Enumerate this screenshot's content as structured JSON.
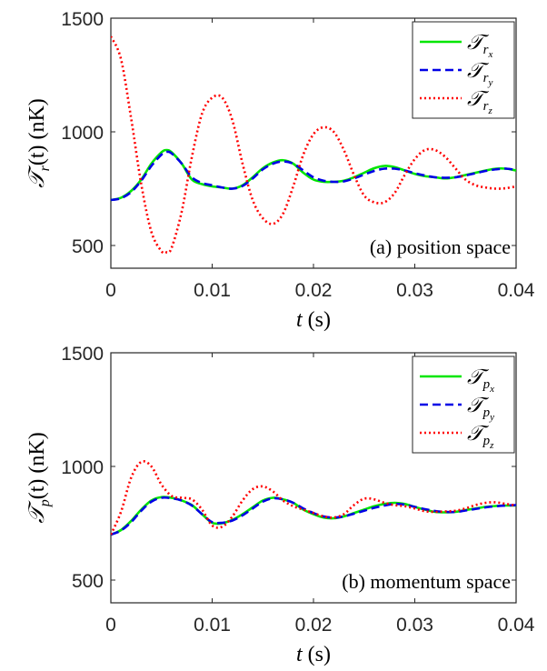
{
  "chart_data": [
    {
      "type": "line",
      "panel_label": "(a) position space",
      "xlabel": "t (s)",
      "ylabel": "𝒯r(t) (nK)",
      "ylabel_parts": {
        "symbol": "𝒯",
        "sub": "r",
        "rest": "(t) (nK)"
      },
      "xlim": [
        0,
        0.04
      ],
      "ylim": [
        400,
        1500
      ],
      "xticks": [
        "0",
        "0.01",
        "0.02",
        "0.03",
        "0.04"
      ],
      "yticks": [
        "500",
        "1000",
        "1500"
      ],
      "legend_position": "top-right",
      "grid": false,
      "series": [
        {
          "name": "𝒯r_x",
          "symbol": "𝒯",
          "sub": "r",
          "subsub": "x",
          "color": "#00e600",
          "dash": "solid",
          "x": [
            0,
            0.001,
            0.002,
            0.003,
            0.004,
            0.005,
            0.0055,
            0.006,
            0.007,
            0.008,
            0.009,
            0.01,
            0.011,
            0.012,
            0.013,
            0.014,
            0.015,
            0.016,
            0.017,
            0.018,
            0.019,
            0.02,
            0.021,
            0.022,
            0.023,
            0.024,
            0.025,
            0.026,
            0.027,
            0.028,
            0.029,
            0.03,
            0.031,
            0.032,
            0.033,
            0.034,
            0.035,
            0.036,
            0.037,
            0.038,
            0.039,
            0.04
          ],
          "y": [
            700,
            710,
            740,
            790,
            860,
            910,
            920,
            910,
            860,
            790,
            770,
            760,
            755,
            750,
            765,
            800,
            840,
            865,
            875,
            860,
            820,
            790,
            780,
            780,
            785,
            800,
            820,
            840,
            850,
            845,
            830,
            815,
            805,
            800,
            795,
            800,
            810,
            820,
            830,
            838,
            838,
            830
          ]
        },
        {
          "name": "𝒯r_y",
          "symbol": "𝒯",
          "sub": "r",
          "subsub": "y",
          "color": "#0000e6",
          "dash": "dashed",
          "x": [
            0,
            0.001,
            0.002,
            0.003,
            0.004,
            0.005,
            0.0055,
            0.006,
            0.007,
            0.008,
            0.009,
            0.01,
            0.011,
            0.012,
            0.013,
            0.014,
            0.015,
            0.016,
            0.017,
            0.018,
            0.019,
            0.02,
            0.021,
            0.022,
            0.023,
            0.024,
            0.025,
            0.026,
            0.027,
            0.028,
            0.029,
            0.03,
            0.031,
            0.032,
            0.033,
            0.034,
            0.035,
            0.036,
            0.037,
            0.038,
            0.039,
            0.04
          ],
          "y": [
            700,
            708,
            735,
            785,
            850,
            900,
            912,
            905,
            860,
            800,
            775,
            765,
            755,
            750,
            762,
            795,
            835,
            860,
            870,
            860,
            830,
            800,
            785,
            780,
            782,
            795,
            812,
            828,
            838,
            838,
            830,
            818,
            808,
            800,
            798,
            800,
            808,
            818,
            828,
            835,
            838,
            832
          ]
        },
        {
          "name": "𝒯r_z",
          "symbol": "𝒯",
          "sub": "r",
          "subsub": "z",
          "color": "#ff0000",
          "dash": "dotted",
          "x": [
            0,
            0.001,
            0.002,
            0.003,
            0.004,
            0.005,
            0.0055,
            0.006,
            0.007,
            0.008,
            0.009,
            0.01,
            0.011,
            0.012,
            0.013,
            0.014,
            0.015,
            0.016,
            0.017,
            0.018,
            0.019,
            0.02,
            0.021,
            0.022,
            0.023,
            0.024,
            0.025,
            0.026,
            0.027,
            0.028,
            0.029,
            0.03,
            0.031,
            0.032,
            0.033,
            0.034,
            0.035,
            0.036,
            0.037,
            0.038,
            0.039,
            0.04
          ],
          "y": [
            1420,
            1320,
            1060,
            770,
            560,
            475,
            470,
            490,
            650,
            890,
            1080,
            1150,
            1150,
            1050,
            860,
            700,
            620,
            595,
            640,
            760,
            900,
            990,
            1020,
            1000,
            920,
            810,
            720,
            690,
            690,
            730,
            810,
            880,
            920,
            920,
            890,
            840,
            790,
            765,
            755,
            750,
            752,
            760
          ]
        }
      ]
    },
    {
      "type": "line",
      "panel_label": "(b) momentum space",
      "xlabel": "t (s)",
      "ylabel": "𝒯p(t) (nK)",
      "ylabel_parts": {
        "symbol": "𝒯",
        "sub": "p",
        "rest": "(t) (nK)"
      },
      "xlim": [
        0,
        0.04
      ],
      "ylim": [
        400,
        1500
      ],
      "xticks": [
        "0",
        "0.01",
        "0.02",
        "0.03",
        "0.04"
      ],
      "yticks": [
        "500",
        "1000",
        "1500"
      ],
      "legend_position": "top-right",
      "grid": false,
      "series": [
        {
          "name": "𝒯p_x",
          "symbol": "𝒯",
          "sub": "p",
          "subsub": "x",
          "color": "#00e600",
          "dash": "solid",
          "x": [
            0,
            0.001,
            0.002,
            0.003,
            0.004,
            0.005,
            0.006,
            0.007,
            0.008,
            0.009,
            0.01,
            0.011,
            0.012,
            0.013,
            0.014,
            0.015,
            0.016,
            0.017,
            0.018,
            0.019,
            0.02,
            0.021,
            0.022,
            0.023,
            0.024,
            0.025,
            0.026,
            0.027,
            0.028,
            0.029,
            0.03,
            0.031,
            0.032,
            0.033,
            0.034,
            0.035,
            0.036,
            0.037,
            0.038,
            0.039,
            0.04
          ],
          "y": [
            700,
            720,
            760,
            810,
            850,
            865,
            862,
            850,
            830,
            790,
            752,
            750,
            765,
            790,
            820,
            850,
            862,
            855,
            840,
            810,
            790,
            775,
            772,
            780,
            795,
            810,
            825,
            835,
            840,
            835,
            822,
            810,
            800,
            798,
            800,
            808,
            815,
            822,
            826,
            828,
            828
          ]
        },
        {
          "name": "𝒯p_y",
          "symbol": "𝒯",
          "sub": "p",
          "subsub": "y",
          "color": "#0000e6",
          "dash": "dashed",
          "x": [
            0,
            0.001,
            0.002,
            0.003,
            0.004,
            0.005,
            0.006,
            0.007,
            0.008,
            0.009,
            0.01,
            0.011,
            0.012,
            0.013,
            0.014,
            0.015,
            0.016,
            0.017,
            0.018,
            0.019,
            0.02,
            0.021,
            0.022,
            0.023,
            0.024,
            0.025,
            0.026,
            0.027,
            0.028,
            0.029,
            0.03,
            0.031,
            0.032,
            0.033,
            0.034,
            0.035,
            0.036,
            0.037,
            0.038,
            0.039,
            0.04
          ],
          "y": [
            700,
            718,
            755,
            805,
            845,
            862,
            860,
            850,
            828,
            790,
            755,
            752,
            762,
            785,
            815,
            845,
            860,
            855,
            840,
            815,
            795,
            780,
            775,
            780,
            792,
            805,
            818,
            828,
            835,
            832,
            822,
            812,
            804,
            800,
            800,
            806,
            813,
            820,
            825,
            828,
            830
          ]
        },
        {
          "name": "𝒯p_z",
          "symbol": "𝒯",
          "sub": "p",
          "subsub": "z",
          "color": "#ff0000",
          "dash": "dotted",
          "x": [
            0,
            0.001,
            0.002,
            0.003,
            0.004,
            0.005,
            0.006,
            0.007,
            0.008,
            0.009,
            0.01,
            0.011,
            0.012,
            0.013,
            0.014,
            0.015,
            0.016,
            0.017,
            0.018,
            0.019,
            0.02,
            0.021,
            0.022,
            0.023,
            0.024,
            0.025,
            0.026,
            0.027,
            0.028,
            0.029,
            0.03,
            0.031,
            0.032,
            0.033,
            0.034,
            0.035,
            0.036,
            0.037,
            0.038,
            0.039,
            0.04
          ],
          "y": [
            700,
            800,
            950,
            1020,
            1000,
            920,
            870,
            862,
            855,
            810,
            740,
            735,
            780,
            850,
            900,
            912,
            890,
            850,
            825,
            810,
            795,
            780,
            775,
            790,
            830,
            858,
            855,
            840,
            830,
            825,
            815,
            803,
            800,
            802,
            805,
            815,
            830,
            840,
            842,
            835,
            828
          ]
        }
      ]
    }
  ]
}
